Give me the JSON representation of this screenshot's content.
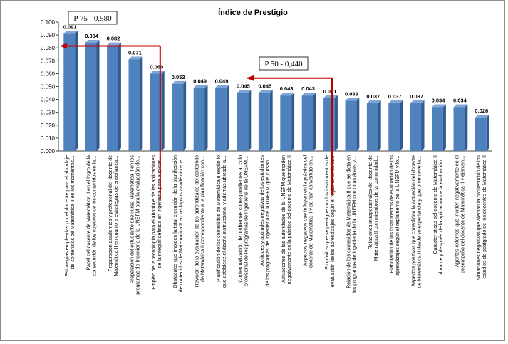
{
  "chart_data": {
    "type": "bar",
    "title": "Índice de Prestigio",
    "xlabel": "",
    "ylabel": "",
    "ylim": [
      0,
      0.1
    ],
    "yticks": [
      "0.000",
      "0.010",
      "0.020",
      "0.030",
      "0.040",
      "0.050",
      "0.060",
      "0.070",
      "0.080",
      "0.090",
      "0.100"
    ],
    "grid": false,
    "bar_color": "#4f81bd",
    "annotation_color": "#c00000",
    "categories": [
      "Estrategias empleadas por el docente para el abordaje de contenidos de Matemática II en los momentos…",
      "Papel del docente de Matemática II en el logro de la consecución de los objetivos de los contenidos en la…",
      "Preparación académica y profesional del docente de Matemática II en cuanto a estrategias de enseñanza…",
      "Preparación del estudiante que cursa Matemática II en los programas de Ingeniería de la UNEFM para la evaluación de…",
      "Empleo de la tecnología para el abordaje de las aplicaciones de la integral definida en ingeniería para aupiciar…",
      "Obstáculos que impiden la total ejecución de la planificación de contenidos de Matemática II en los lapsos académicos e…",
      "Revisión de la evaluación de los aprendizajes del contenido de Matemática II correspondiente a la planificación con…",
      "Planificación de los contenidos de Matemática II según lo que establece el diseño instruccional y además ubicado a…",
      "Contextualización de problemas correspondientes al ciclo profesional de los programas de Ingeniería de la UNEFM…",
      "Actitudes y aptitudes negativas de los estudiantes de los programas de Ingeniería de la UNEFM que cursan…",
      "Actuaciones de las autoridades de la UNEFM que inciden negativamente en la práctica del docente de Matemática II",
      "Aspectos negativos que influyen en la práctica del docente de Matemática II y se han convertido en…",
      "Propósitos que se persigue con los instrumentos de evaluación de los aprendizajes según el reglamento de la…",
      "Relación de los contenidos de Matemática II que se dicta en los programas de Ingeniería de la UNEFM con otras áreas y…",
      "Relaciones intrapersonales del docente de Matemática II con miembros de la comunidad…",
      "Elaboración de los instrumentos de evaluación de los aprendizajes según el reglamento de la UNEFM y lo…",
      "Aspectos positivos que consolidan la actuación del docente de Matemática II desde su experiencia y que promueve la…",
      "Características del docente de Matemática II durante y después de la aplicación de la evaluación…",
      "Agentes externos que inciden negativamente en el desempeño del docente de Matemática II y ejercen…",
      "Situaciones negativas que afectan la consecución de los estudios de postgrado de los docentes de Matemática II"
    ],
    "values": [
      0.091,
      0.084,
      0.082,
      0.071,
      0.06,
      0.052,
      0.049,
      0.049,
      0.045,
      0.045,
      0.043,
      0.043,
      0.041,
      0.039,
      0.037,
      0.037,
      0.037,
      0.034,
      0.034,
      0.026
    ],
    "data_labels": [
      "0.091",
      "0.084",
      "0.082",
      "0.071",
      "0.060",
      "0.052",
      "0.049",
      "0.049",
      "0.045",
      "0.045",
      "0.043",
      "0.043",
      "0.041",
      "0.039",
      "0.037",
      "0.037",
      "0.037",
      "0.034",
      "0.034",
      "0.026"
    ],
    "annotations": [
      {
        "text": "P 75 - 0,580",
        "category_index": 4,
        "value": 0.0815
      },
      {
        "text": "P 50 - 0,440",
        "category_index": 12,
        "value": 0.0565
      }
    ]
  }
}
